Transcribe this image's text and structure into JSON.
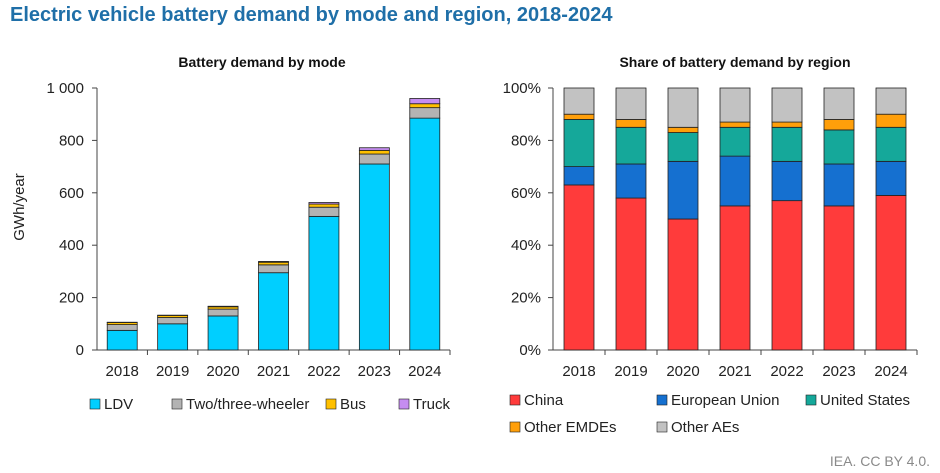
{
  "title": "Electric vehicle battery demand by mode and region, 2018-2024",
  "source": "IEA. CC BY 4.0.",
  "colors": {
    "title": "#1f6fa8",
    "LDV": "#00cfff",
    "Two/three-wheeler": "#b3b3b3",
    "Bus": "#ffc000",
    "Truck": "#c58df0",
    "China": "#ff3b3b",
    "European Union": "#1570d0",
    "United States": "#15a89a",
    "Other EMDEs": "#ff9f0a",
    "Other AEs": "#c2c2c2"
  },
  "chart_data": [
    {
      "type": "bar",
      "stacked": true,
      "title": "Battery demand by mode",
      "ylabel": "GWh/year",
      "xlabel": "",
      "categories": [
        "2018",
        "2019",
        "2020",
        "2021",
        "2022",
        "2023",
        "2024"
      ],
      "ylim": [
        0,
        1000
      ],
      "yticks": [
        0,
        200,
        400,
        600,
        800,
        1000
      ],
      "ytick_labels": [
        "0",
        "200",
        "400",
        "600",
        "800",
        "1 000"
      ],
      "series": [
        {
          "name": "LDV",
          "values": [
            75,
            100,
            130,
            295,
            510,
            710,
            885
          ]
        },
        {
          "name": "Two/three-wheeler",
          "values": [
            22,
            24,
            26,
            30,
            35,
            38,
            40
          ]
        },
        {
          "name": "Bus",
          "values": [
            8,
            8,
            9,
            10,
            12,
            14,
            15
          ]
        },
        {
          "name": "Truck",
          "values": [
            1,
            1,
            2,
            3,
            6,
            10,
            20
          ]
        }
      ],
      "legend": [
        "LDV",
        "Two/three-wheeler",
        "Bus",
        "Truck"
      ]
    },
    {
      "type": "bar",
      "stacked": true,
      "title": "Share of battery demand by region",
      "categories": [
        "2018",
        "2019",
        "2020",
        "2021",
        "2022",
        "2023",
        "2024"
      ],
      "ylim": [
        0,
        100
      ],
      "yticks": [
        0,
        20,
        40,
        60,
        80,
        100
      ],
      "ytick_labels": [
        "0%",
        "20%",
        "40%",
        "60%",
        "80%",
        "100%"
      ],
      "series": [
        {
          "name": "China",
          "values": [
            63,
            58,
            50,
            55,
            57,
            55,
            59
          ]
        },
        {
          "name": "European Union",
          "values": [
            7,
            13,
            22,
            19,
            15,
            16,
            13
          ]
        },
        {
          "name": "United States",
          "values": [
            18,
            14,
            11,
            11,
            13,
            13,
            13
          ]
        },
        {
          "name": "Other EMDEs",
          "values": [
            2,
            3,
            2,
            2,
            2,
            4,
            5
          ]
        },
        {
          "name": "Other AEs",
          "values": [
            10,
            12,
            15,
            13,
            13,
            12,
            10
          ]
        }
      ],
      "legend": [
        "China",
        "European Union",
        "United States",
        "Other EMDEs",
        "Other AEs"
      ]
    }
  ]
}
